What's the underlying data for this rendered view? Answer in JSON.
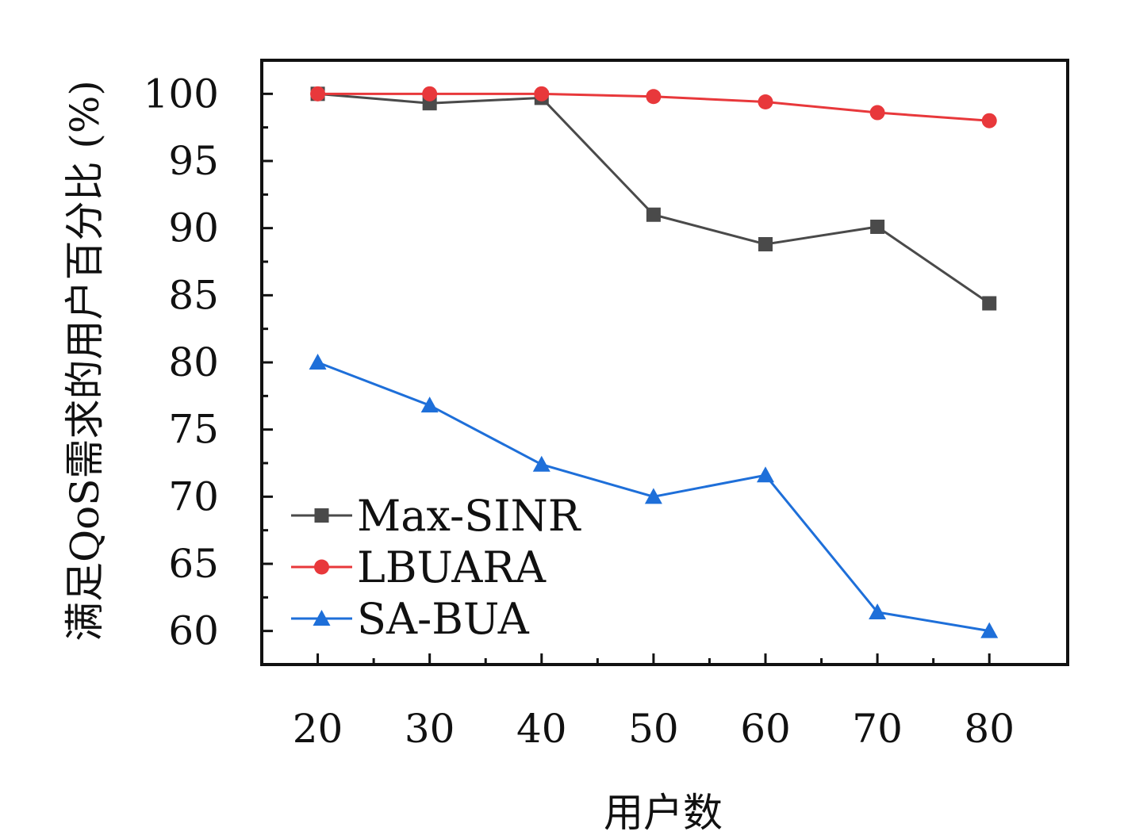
{
  "chart_data": {
    "type": "line",
    "xlabel": "用户数",
    "ylabel": "满足QoS需求的用户百分比 (%)",
    "x": [
      20,
      30,
      40,
      50,
      60,
      70,
      80
    ],
    "xlim": [
      15,
      87
    ],
    "ylim": [
      57.5,
      102.5
    ],
    "xticks": [
      20,
      30,
      40,
      50,
      60,
      70,
      80
    ],
    "yticks": [
      60,
      65,
      70,
      75,
      80,
      85,
      90,
      95,
      100
    ],
    "grid": false,
    "legend_position": "bottom-left",
    "series": [
      {
        "name": "Max-SINR",
        "color": "#4a4a4a",
        "marker": "square",
        "values": [
          100,
          99.3,
          99.7,
          91.0,
          88.8,
          90.1,
          84.4
        ]
      },
      {
        "name": "LBUARA",
        "color": "#e8383b",
        "marker": "circle",
        "values": [
          100,
          100,
          100,
          99.8,
          99.4,
          98.6,
          98.0
        ]
      },
      {
        "name": "SA-BUA",
        "color": "#1e6fd9",
        "marker": "triangle",
        "values": [
          80.0,
          76.8,
          72.4,
          70.0,
          71.6,
          61.4,
          60.0
        ]
      }
    ]
  }
}
